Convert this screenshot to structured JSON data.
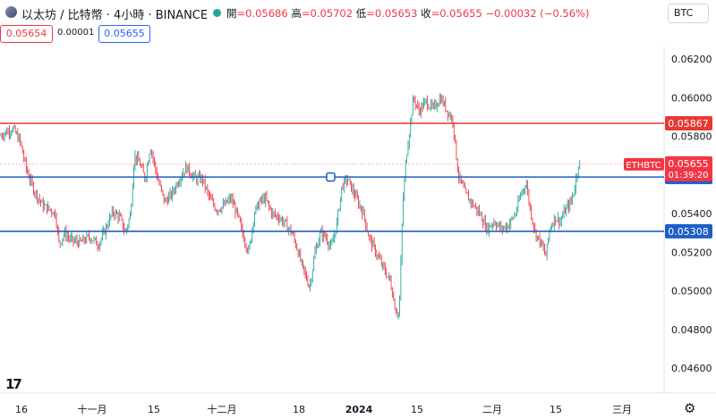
{
  "header": {
    "symbol_title": "以太坊 / 比特幣 · 4小時 · BINANCE",
    "ohlc": [
      {
        "label": "開",
        "value": "=0.05686"
      },
      {
        "label": "高",
        "value": "=0.05702"
      },
      {
        "label": "低",
        "value": "=0.05653"
      },
      {
        "label": "收",
        "value": "=0.05655"
      }
    ],
    "change": "−0.00032 (−0.56%)",
    "currency": "BTC"
  },
  "quote": {
    "bid": "0.05654",
    "spread": "0.00001",
    "ask": "0.05655"
  },
  "colors": {
    "up": "#26a69a",
    "down": "#f23645",
    "hline_red": "#e53935",
    "hline_blue": "#1e5ec8"
  },
  "chart_data": {
    "type": "candlestick",
    "symbol": "ETHBTC",
    "timeframe": "4小時",
    "ylim": [
      0.0455,
      0.0628
    ],
    "y_ticks": [
      "0.06200",
      "0.06000",
      "0.05800",
      "0.05400",
      "0.05200",
      "0.05000",
      "0.04800",
      "0.04600"
    ],
    "x_ticks": [
      {
        "label": "16",
        "bold": false
      },
      {
        "label": "十一月",
        "bold": false
      },
      {
        "label": "15",
        "bold": false
      },
      {
        "label": "十二月",
        "bold": false
      },
      {
        "label": "18",
        "bold": false
      },
      {
        "label": "2024",
        "bold": true
      },
      {
        "label": "15",
        "bold": false
      },
      {
        "label": "二月",
        "bold": false
      },
      {
        "label": "15",
        "bold": false
      },
      {
        "label": "三月",
        "bold": false
      }
    ],
    "horizontal_lines": [
      {
        "price": 0.05867,
        "label": "0.05867",
        "color": "red"
      },
      {
        "price": 0.05589,
        "label": "0.05589",
        "color": "blue"
      },
      {
        "price": 0.05308,
        "label": "0.05308",
        "color": "blue"
      }
    ],
    "last_price": {
      "symbol": "ETHBTC",
      "price": 0.05655,
      "label": "0.05655",
      "countdown": "01:39:20"
    },
    "close_path": [
      [
        0,
        0.058
      ],
      [
        6,
        0.0582
      ],
      [
        14,
        0.0584
      ],
      [
        22,
        0.0578
      ],
      [
        30,
        0.0562
      ],
      [
        38,
        0.0552
      ],
      [
        48,
        0.0544
      ],
      [
        56,
        0.0542
      ],
      [
        62,
        0.054
      ],
      [
        66,
        0.0524
      ],
      [
        72,
        0.053
      ],
      [
        80,
        0.0526
      ],
      [
        90,
        0.0525
      ],
      [
        100,
        0.0528
      ],
      [
        110,
        0.0524
      ],
      [
        118,
        0.0532
      ],
      [
        126,
        0.0541
      ],
      [
        134,
        0.0538
      ],
      [
        140,
        0.053
      ],
      [
        146,
        0.054
      ],
      [
        150,
        0.057
      ],
      [
        156,
        0.0566
      ],
      [
        162,
        0.0558
      ],
      [
        168,
        0.0575
      ],
      [
        176,
        0.0558
      ],
      [
        184,
        0.0546
      ],
      [
        192,
        0.055
      ],
      [
        200,
        0.0558
      ],
      [
        208,
        0.0564
      ],
      [
        218,
        0.0558
      ],
      [
        226,
        0.0558
      ],
      [
        234,
        0.0548
      ],
      [
        242,
        0.0542
      ],
      [
        250,
        0.0544
      ],
      [
        258,
        0.0548
      ],
      [
        266,
        0.0538
      ],
      [
        272,
        0.0528
      ],
      [
        278,
        0.052
      ],
      [
        284,
        0.054
      ],
      [
        290,
        0.0546
      ],
      [
        296,
        0.0548
      ],
      [
        304,
        0.054
      ],
      [
        312,
        0.0538
      ],
      [
        320,
        0.0534
      ],
      [
        326,
        0.053
      ],
      [
        332,
        0.0522
      ],
      [
        338,
        0.0512
      ],
      [
        346,
        0.0502
      ],
      [
        352,
        0.052
      ],
      [
        358,
        0.053
      ],
      [
        364,
        0.0528
      ],
      [
        370,
        0.0522
      ],
      [
        376,
        0.0534
      ],
      [
        382,
        0.0554
      ],
      [
        388,
        0.0558
      ],
      [
        394,
        0.0552
      ],
      [
        400,
        0.0546
      ],
      [
        406,
        0.054
      ],
      [
        412,
        0.0528
      ],
      [
        420,
        0.052
      ],
      [
        428,
        0.0512
      ],
      [
        436,
        0.0505
      ],
      [
        442,
        0.049
      ],
      [
        446,
        0.0488
      ],
      [
        450,
        0.0545
      ],
      [
        454,
        0.057
      ],
      [
        458,
        0.0585
      ],
      [
        462,
        0.06
      ],
      [
        468,
        0.0593
      ],
      [
        476,
        0.0598
      ],
      [
        484,
        0.0594
      ],
      [
        492,
        0.06
      ],
      [
        500,
        0.0593
      ],
      [
        506,
        0.0588
      ],
      [
        512,
        0.056
      ],
      [
        520,
        0.055
      ],
      [
        528,
        0.0545
      ],
      [
        536,
        0.054
      ],
      [
        544,
        0.0532
      ],
      [
        552,
        0.0536
      ],
      [
        560,
        0.0532
      ],
      [
        568,
        0.0534
      ],
      [
        576,
        0.054
      ],
      [
        582,
        0.055
      ],
      [
        588,
        0.0556
      ],
      [
        592,
        0.0543
      ],
      [
        598,
        0.053
      ],
      [
        604,
        0.0525
      ],
      [
        610,
        0.0518
      ],
      [
        614,
        0.0532
      ],
      [
        620,
        0.0538
      ],
      [
        626,
        0.0536
      ],
      [
        632,
        0.0542
      ],
      [
        638,
        0.0546
      ],
      [
        642,
        0.0553
      ],
      [
        646,
        0.0565
      ],
      [
        648,
        0.05655
      ]
    ]
  }
}
